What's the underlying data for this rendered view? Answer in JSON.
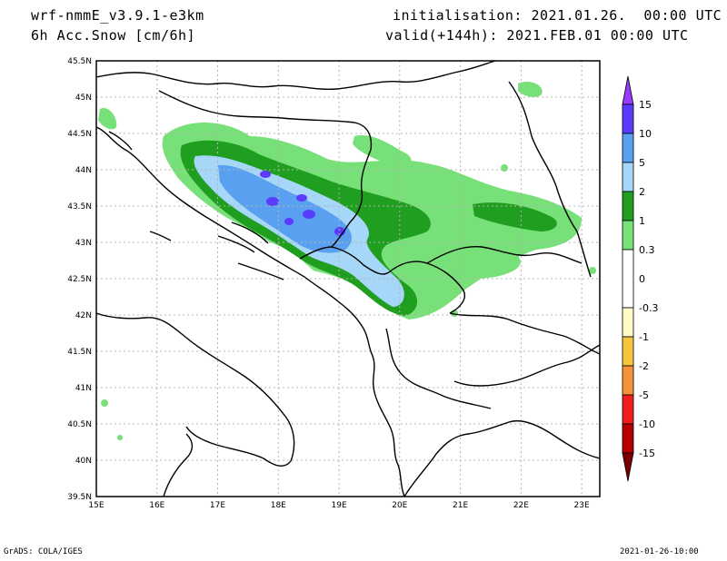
{
  "header": {
    "model": "wrf-nmmE_v3.9.1-e3km",
    "field": "6h Acc.Snow [cm/6h]",
    "initialisation": "initialisation: 2021.01.26.  00:00 UTC",
    "valid": "valid(+144h): 2021.FEB.01 00:00 UTC"
  },
  "map": {
    "lat_labels": [
      "45.5N",
      "45N",
      "44.5N",
      "44N",
      "43.5N",
      "43N",
      "42.5N",
      "42N",
      "41.5N",
      "41N",
      "40.5N",
      "40N",
      "39.5N"
    ],
    "lon_labels": [
      "15E",
      "16E",
      "17E",
      "18E",
      "19E",
      "20E",
      "21E",
      "22E",
      "23E"
    ],
    "lat_range": [
      39.5,
      45.5
    ],
    "lon_range": [
      15,
      23.3
    ]
  },
  "colorbar": {
    "labels": [
      "15",
      "10",
      "5",
      "2",
      "1",
      "0.3",
      "0",
      "-0.3",
      "-1",
      "-2",
      "-5",
      "-10",
      "-15"
    ],
    "colors": {
      "top_arrow": "#9a3cff",
      "c10_15": "#5a3cff",
      "c5_10": "#5aa0f0",
      "c2_5": "#a6d7f8",
      "c1_2": "#1f9e1f",
      "c03_1": "#78e078",
      "neg03_03": "#ffffff",
      "neg1_03": "#fffbc8",
      "neg2_1": "#f7c53c",
      "neg5_2": "#f7923c",
      "neg10_5": "#f01e1e",
      "neg15_10": "#b40000",
      "bottom_arrow": "#780000"
    }
  },
  "footer": {
    "credit": "GrADS: COLA/IGES",
    "timestamp": "2021-01-26-10:00"
  }
}
